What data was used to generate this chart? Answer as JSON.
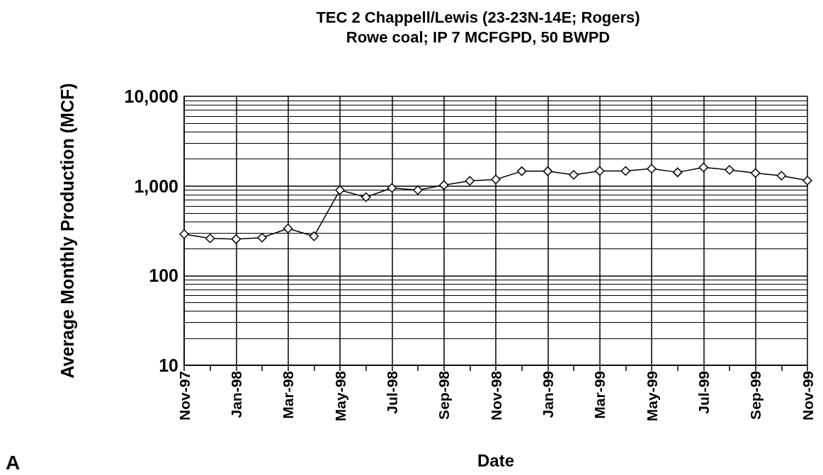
{
  "chart_data": {
    "type": "line",
    "title": "TEC 2 Chappell/Lewis (23-23N-14E; Rogers)",
    "subtitle": "Rowe coal; IP 7 MCFGPD, 50 BWPD",
    "xlabel": "Date",
    "ylabel": "Average Monthly Production (MCF)",
    "annotations": [
      "A"
    ],
    "categories": [
      "Nov-97",
      null,
      "Jan-98",
      null,
      "Mar-98",
      null,
      "May-98",
      null,
      "Jul-98",
      null,
      "Sep-98",
      null,
      "Nov-98",
      null,
      "Jan-99",
      null,
      "Mar-99",
      null,
      "May-99",
      null,
      "Jul-99",
      null,
      "Sep-99",
      null,
      "Nov-99"
    ],
    "series": [
      {
        "color": "#000000",
        "values": [
          290,
          260,
          255,
          265,
          335,
          275,
          900,
          750,
          950,
          900,
          1020,
          1140,
          1180,
          1460,
          1460,
          1330,
          1470,
          1470,
          1560,
          1420,
          1610,
          1510,
          1390,
          1300,
          1150
        ]
      }
    ],
    "log": "y",
    "ylim": [
      10,
      10000
    ],
    "yticks": [
      10,
      100,
      {
        "value": 1000,
        "label": "1,000"
      },
      {
        "value": 10000,
        "label": "10,000"
      }
    ],
    "grid": true,
    "marker": "diamond",
    "line_style": "solid"
  }
}
